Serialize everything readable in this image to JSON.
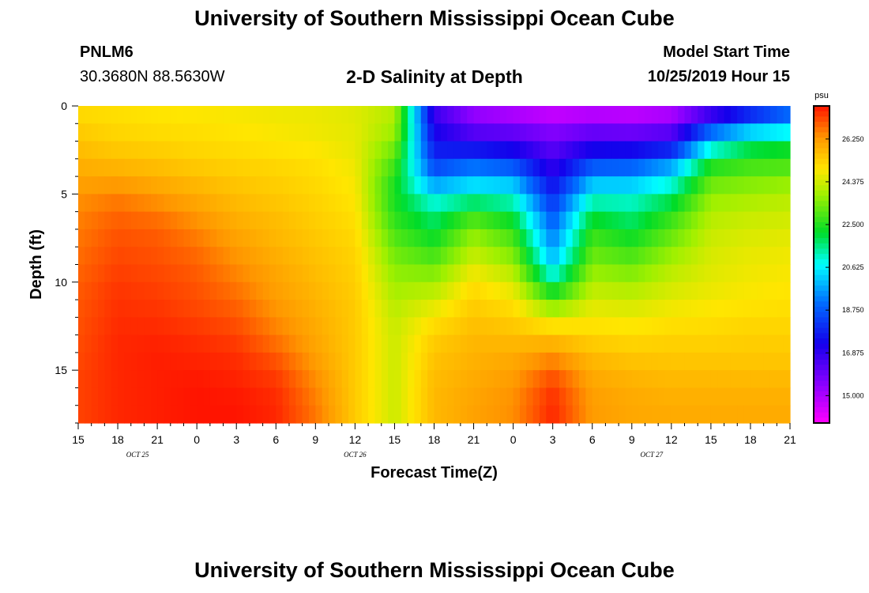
{
  "page": {
    "title_top": "University of Southern Mississippi Ocean Cube",
    "title_bottom": "University of Southern Mississippi Ocean Cube",
    "station_id": "PNLM6",
    "coordinates": "30.3680N 88.5630W",
    "subtitle": "2-D Salinity at Depth",
    "model_start_label": "Model Start Time",
    "model_start_value": "10/25/2019 Hour 15"
  },
  "chart_data": {
    "type": "heatmap",
    "title": "2-D Salinity at Depth",
    "xlabel": "Forecast Time(Z)",
    "ylabel": "Depth (ft)",
    "x_ticks": [
      "15",
      "18",
      "21",
      "0",
      "3",
      "6",
      "9",
      "12",
      "15",
      "18",
      "21",
      "0",
      "3",
      "6",
      "9",
      "12",
      "15",
      "18",
      "21"
    ],
    "x_tick_hours": [
      0,
      3,
      6,
      9,
      12,
      15,
      18,
      21,
      24,
      27,
      30,
      33,
      36,
      39,
      42,
      45,
      48,
      51,
      54
    ],
    "date_labels": [
      {
        "text": "OCT 25",
        "hour": 4.5
      },
      {
        "text": "OCT 26",
        "hour": 21
      },
      {
        "text": "OCT 27",
        "hour": 43.5
      }
    ],
    "y_ticks": [
      "0",
      "5",
      "10",
      "15"
    ],
    "y_tick_values": [
      0,
      5,
      10,
      15
    ],
    "ylim": [
      0,
      18
    ],
    "xlim_hours": [
      0,
      54
    ],
    "x_unit": "forecast hour from 10/25 15Z",
    "colorbar": {
      "unit": "psu",
      "min": 13.8,
      "max": 27.7,
      "ticks": [
        "26.250",
        "24.375",
        "22.500",
        "20.625",
        "18.750",
        "16.875",
        "15.000"
      ],
      "tick_values": [
        26.25,
        24.375,
        22.5,
        20.625,
        18.75,
        16.875,
        15.0
      ]
    },
    "grid_hours": [
      0,
      3,
      6,
      9,
      12,
      15,
      18,
      21,
      24,
      27,
      30,
      33,
      36,
      39,
      42,
      45,
      48,
      51,
      54
    ],
    "grid_depths": [
      0,
      1,
      2,
      3,
      4,
      5,
      6,
      7,
      8,
      9,
      10,
      11,
      12,
      13,
      14,
      15,
      16,
      17,
      18
    ],
    "salinity_psu": [
      [
        25.0,
        25.0,
        24.9,
        24.8,
        24.8,
        24.7,
        24.7,
        24.5,
        24.0,
        16.5,
        15.0,
        14.5,
        14.2,
        14.3,
        14.2,
        14.4,
        15.5,
        17.0,
        18.5
      ],
      [
        25.3,
        25.1,
        25.0,
        25.0,
        24.9,
        24.8,
        24.7,
        24.6,
        24.0,
        17.0,
        15.8,
        15.6,
        15.2,
        15.5,
        15.4,
        15.7,
        18.0,
        19.0,
        19.5
      ],
      [
        25.5,
        25.3,
        25.2,
        25.1,
        25.0,
        24.9,
        24.8,
        24.6,
        23.5,
        17.5,
        16.8,
        16.6,
        16.0,
        16.6,
        16.5,
        16.8,
        20.0,
        21.5,
        22.0
      ],
      [
        25.8,
        25.6,
        25.5,
        25.3,
        25.2,
        25.1,
        25.0,
        24.7,
        23.0,
        18.0,
        18.5,
        18.0,
        16.5,
        18.0,
        18.2,
        19.0,
        22.0,
        22.5,
        22.5
      ],
      [
        26.0,
        26.0,
        25.8,
        25.6,
        25.4,
        25.3,
        25.1,
        24.8,
        22.5,
        19.0,
        19.8,
        19.5,
        17.2,
        19.5,
        19.6,
        20.5,
        23.0,
        23.3,
        23.5
      ],
      [
        26.3,
        26.5,
        26.2,
        25.9,
        25.6,
        25.4,
        25.2,
        24.9,
        22.3,
        20.5,
        21.0,
        20.8,
        17.8,
        20.8,
        20.8,
        21.5,
        23.6,
        23.8,
        24.0
      ],
      [
        26.5,
        26.8,
        26.6,
        26.2,
        25.8,
        25.6,
        25.3,
        25.0,
        22.5,
        21.5,
        22.5,
        21.8,
        18.5,
        21.8,
        21.5,
        22.5,
        24.0,
        24.2,
        24.3
      ],
      [
        26.6,
        27.0,
        26.9,
        26.5,
        26.0,
        25.7,
        25.4,
        25.1,
        22.8,
        22.0,
        23.5,
        22.6,
        19.0,
        22.6,
        22.0,
        23.0,
        24.2,
        24.4,
        24.5
      ],
      [
        26.7,
        27.1,
        27.0,
        26.7,
        26.2,
        25.8,
        25.5,
        25.2,
        23.2,
        22.5,
        24.0,
        23.2,
        19.5,
        23.0,
        22.6,
        23.5,
        24.4,
        24.6,
        24.7
      ],
      [
        26.8,
        27.2,
        27.1,
        26.9,
        26.4,
        26.0,
        25.6,
        25.3,
        23.5,
        23.2,
        24.5,
        23.8,
        20.2,
        23.5,
        23.2,
        24.0,
        24.5,
        24.7,
        24.8
      ],
      [
        26.9,
        27.3,
        27.2,
        27.0,
        26.6,
        26.1,
        25.7,
        25.3,
        23.8,
        23.8,
        25.0,
        24.4,
        21.5,
        24.0,
        23.8,
        24.3,
        24.6,
        24.8,
        24.9
      ],
      [
        27.0,
        27.4,
        27.3,
        27.1,
        26.8,
        26.2,
        25.8,
        25.4,
        24.0,
        24.4,
        25.3,
        24.9,
        23.0,
        24.4,
        24.3,
        24.6,
        24.8,
        24.9,
        25.0
      ],
      [
        27.0,
        27.4,
        27.4,
        27.2,
        27.0,
        26.4,
        25.9,
        25.4,
        24.2,
        24.9,
        25.5,
        25.3,
        24.5,
        24.8,
        24.7,
        24.9,
        25.0,
        25.1,
        25.1
      ],
      [
        27.1,
        27.5,
        27.5,
        27.4,
        27.2,
        26.6,
        26.0,
        25.4,
        24.3,
        25.3,
        25.7,
        25.6,
        25.5,
        25.2,
        25.1,
        25.2,
        25.2,
        25.3,
        25.3
      ],
      [
        27.1,
        27.5,
        27.6,
        27.5,
        27.4,
        26.9,
        26.1,
        25.4,
        24.3,
        25.5,
        25.8,
        25.9,
        26.2,
        25.6,
        25.4,
        25.4,
        25.4,
        25.4,
        25.4
      ],
      [
        27.2,
        27.5,
        27.6,
        27.6,
        27.5,
        27.2,
        26.3,
        25.4,
        24.3,
        25.6,
        25.9,
        26.1,
        26.9,
        25.9,
        25.7,
        25.6,
        25.6,
        25.6,
        25.6
      ],
      [
        27.2,
        27.5,
        27.6,
        27.7,
        27.6,
        27.4,
        26.5,
        25.4,
        24.3,
        25.7,
        26.0,
        26.3,
        27.3,
        26.1,
        25.9,
        25.8,
        25.8,
        25.8,
        25.8
      ],
      [
        27.2,
        27.5,
        27.6,
        27.7,
        27.7,
        27.5,
        26.6,
        25.4,
        24.3,
        25.7,
        26.1,
        26.4,
        27.5,
        26.2,
        26.0,
        25.9,
        25.9,
        25.9,
        25.9
      ],
      [
        27.2,
        27.5,
        27.6,
        27.7,
        27.7,
        27.5,
        26.7,
        25.4,
        24.3,
        25.7,
        26.1,
        26.4,
        27.5,
        26.2,
        26.0,
        26.0,
        26.0,
        26.0,
        26.0
      ]
    ]
  }
}
